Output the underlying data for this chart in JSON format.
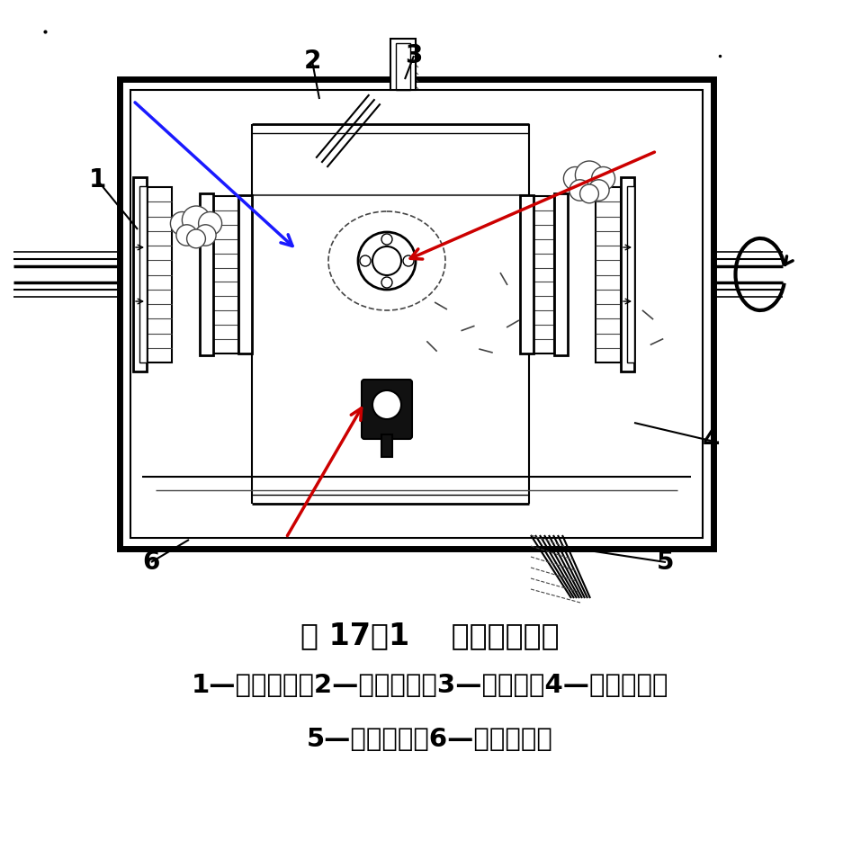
{
  "title": "图 17－1    轴承腔示意图",
  "caption_line1": "1—密封空气；2—滑油喷嘴；3—通风管；4—滑油密封；",
  "caption_line2": "5—滑油回油；6—漏油排出孔",
  "bg_color": "#ffffff",
  "arrow_color_blue": "#1a1aff",
  "arrow_color_red": "#cc0000",
  "title_fontsize": 24,
  "caption_fontsize": 21,
  "label_fontsize": 20
}
